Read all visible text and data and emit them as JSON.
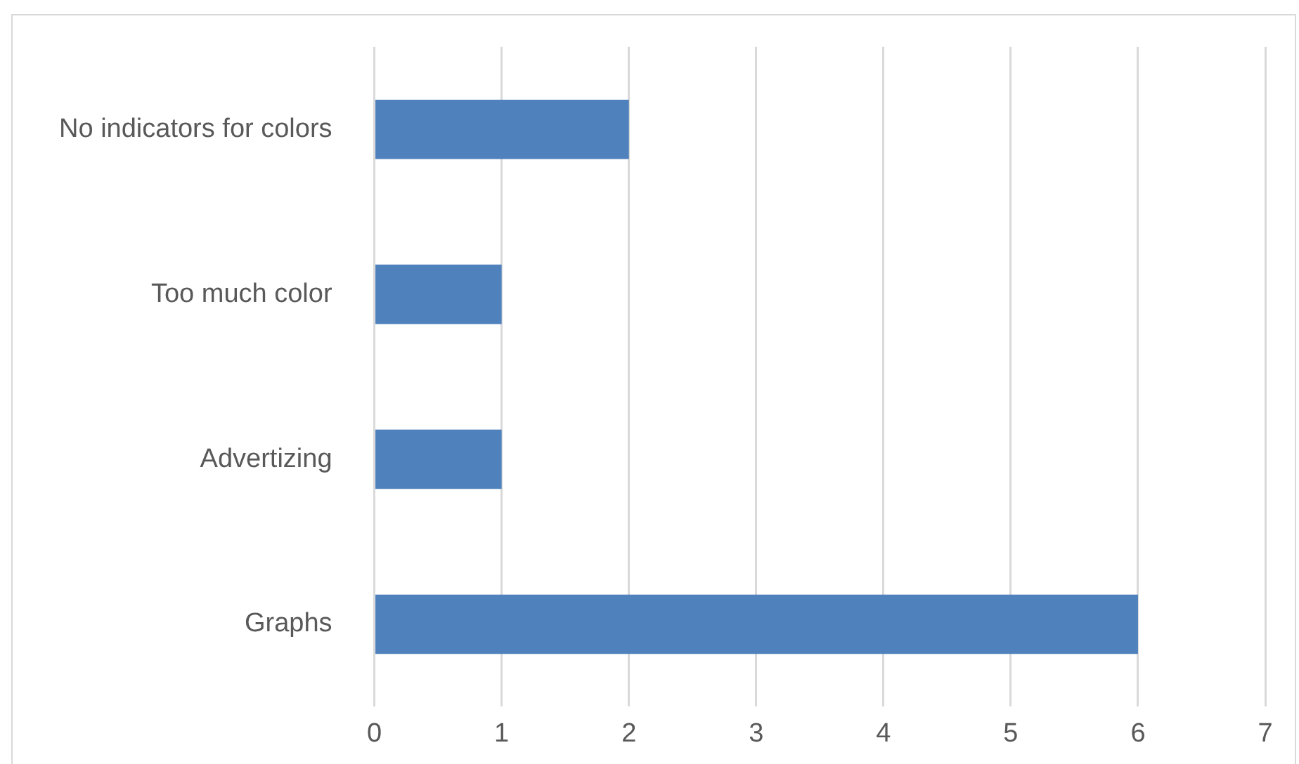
{
  "chart_data": {
    "type": "bar",
    "orientation": "horizontal",
    "categories": [
      "No indicators for colors",
      "Too much color",
      "Advertizing",
      "Graphs"
    ],
    "values": [
      2,
      1,
      1,
      6
    ],
    "color": "#4f81bd",
    "xlim": [
      0,
      7
    ],
    "xticks": [
      0,
      1,
      2,
      3,
      4,
      5,
      6,
      7
    ],
    "grid": "x",
    "legend": false
  }
}
